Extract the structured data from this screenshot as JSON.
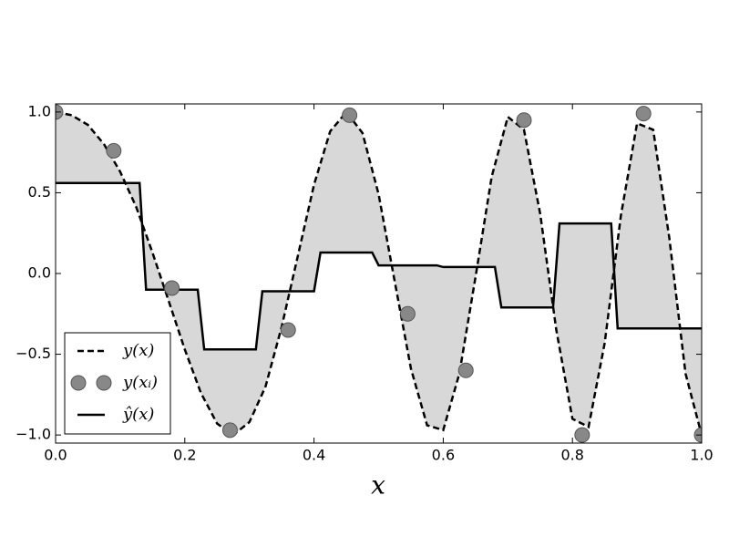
{
  "chart_data": {
    "type": "line",
    "xlabel": "x",
    "xlim": [
      0,
      1
    ],
    "ylim": [
      -1.05,
      1.05
    ],
    "xticks": [
      {
        "value": 0,
        "label": "0.0"
      },
      0.2,
      0.4,
      0.6,
      0.8,
      {
        "value": 1,
        "label": "1.0"
      }
    ],
    "yticks": [
      {
        "value": -1,
        "label": "−1.0"
      },
      {
        "value": -0.5,
        "label": "−0.5"
      },
      {
        "value": 0,
        "label": "0.0"
      },
      0.5,
      {
        "value": 1,
        "label": "1.0"
      }
    ],
    "legend": "lower left",
    "fill_color": "#d8d8d8",
    "series": [
      {
        "name": "y(x)",
        "color": "#000000",
        "style": "dashed",
        "x": [
          0,
          0.025,
          0.05,
          0.075,
          0.1,
          0.125,
          0.15,
          0.175,
          0.2,
          0.225,
          0.25,
          0.275,
          0.3,
          0.325,
          0.35,
          0.375,
          0.4,
          0.425,
          0.45,
          0.475,
          0.5,
          0.525,
          0.55,
          0.575,
          0.6,
          0.625,
          0.65,
          0.675,
          0.7,
          0.725,
          0.75,
          0.775,
          0.8,
          0.825,
          0.85,
          0.875,
          0.9,
          0.925,
          0.95,
          0.975,
          1
        ],
        "values": [
          1.0,
          0.98,
          0.92,
          0.8,
          0.63,
          0.41,
          0.13,
          -0.17,
          -0.47,
          -0.74,
          -0.93,
          -1.0,
          -0.92,
          -0.7,
          -0.33,
          0.11,
          0.55,
          0.88,
          1.0,
          0.87,
          0.49,
          -0.05,
          -0.59,
          -0.94,
          -0.97,
          -0.62,
          -0.02,
          0.6,
          0.97,
          0.89,
          0.37,
          -0.35,
          -0.9,
          -0.95,
          -0.43,
          0.36,
          0.93,
          0.89,
          0.22,
          -0.62,
          -1.0
        ]
      },
      {
        "name": "y(xᵢ)",
        "color": "#888888",
        "style": "markers",
        "x": [
          0,
          0.09,
          0.18,
          0.27,
          0.36,
          0.455,
          0.545,
          0.635,
          0.725,
          0.815,
          0.91,
          1.0
        ],
        "values": [
          1.0,
          0.76,
          -0.09,
          -0.97,
          -0.35,
          0.98,
          -0.25,
          -0.6,
          0.95,
          -1.0,
          0.99,
          -1.0
        ]
      },
      {
        "name": "ŷ(x)",
        "color": "#000000",
        "style": "solid",
        "x": [
          0,
          0.13,
          0.14,
          0.22,
          0.23,
          0.31,
          0.32,
          0.4,
          0.41,
          0.49,
          0.5,
          0.59,
          0.6,
          0.68,
          0.69,
          0.77,
          0.78,
          0.86,
          0.87,
          1.0
        ],
        "values": [
          0.56,
          0.56,
          -0.1,
          -0.1,
          -0.47,
          -0.47,
          -0.11,
          -0.11,
          0.13,
          0.13,
          0.05,
          0.05,
          0.04,
          0.04,
          -0.21,
          -0.21,
          0.31,
          0.31,
          -0.34,
          -0.34
        ]
      }
    ]
  }
}
